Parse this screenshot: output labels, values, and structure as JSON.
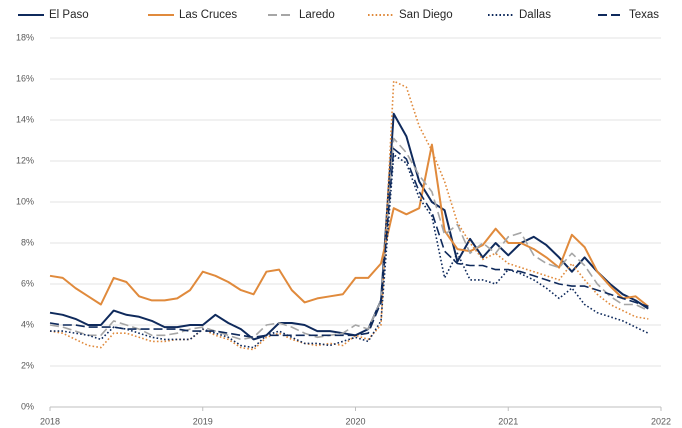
{
  "chart_data": {
    "type": "line",
    "x": [
      2018,
      2018.083,
      2018.167,
      2018.25,
      2018.333,
      2018.417,
      2018.5,
      2018.583,
      2018.667,
      2018.75,
      2018.833,
      2018.917,
      2019,
      2019.083,
      2019.167,
      2019.25,
      2019.333,
      2019.417,
      2019.5,
      2019.583,
      2019.667,
      2019.75,
      2019.833,
      2019.917,
      2020,
      2020.083,
      2020.167,
      2020.25,
      2020.333,
      2020.417,
      2020.5,
      2020.583,
      2020.667,
      2020.75,
      2020.833,
      2020.917,
      2021,
      2021.083,
      2021.167,
      2021.25,
      2021.333,
      2021.417,
      2021.5,
      2021.583,
      2021.667,
      2021.75,
      2021.833,
      2021.917
    ],
    "series": [
      {
        "name": "El Paso",
        "color": "#0f2a5c",
        "style": "solid",
        "values": [
          4.6,
          4.5,
          4.3,
          4.0,
          4.0,
          4.7,
          4.5,
          4.4,
          4.2,
          3.9,
          3.9,
          4.0,
          4.0,
          4.5,
          4.1,
          3.8,
          3.3,
          3.5,
          4.1,
          4.1,
          4.0,
          3.7,
          3.7,
          3.6,
          3.5,
          3.8,
          5.2,
          14.3,
          13.2,
          11.0,
          10.0,
          9.6,
          7.1,
          8.2,
          7.3,
          8.0,
          7.4,
          8.0,
          8.3,
          7.9,
          7.3,
          6.6,
          7.3,
          6.6,
          6.0,
          5.5,
          5.2,
          4.8
        ]
      },
      {
        "name": "Las Cruces",
        "color": "#e08a3c",
        "style": "solid",
        "values": [
          6.4,
          6.3,
          5.8,
          5.4,
          5.0,
          6.3,
          6.1,
          5.4,
          5.2,
          5.2,
          5.3,
          5.7,
          6.6,
          6.4,
          6.1,
          5.7,
          5.5,
          6.6,
          6.7,
          5.7,
          5.1,
          5.3,
          5.4,
          5.5,
          6.3,
          6.3,
          7.0,
          9.7,
          9.4,
          9.7,
          12.8,
          8.6,
          7.7,
          7.6,
          7.9,
          8.7,
          8.0,
          8.0,
          7.7,
          7.3,
          6.8,
          8.4,
          7.8,
          6.6,
          5.9,
          5.3,
          5.4,
          4.9
        ]
      },
      {
        "name": "Laredo",
        "color": "#a6a6a6",
        "style": "dashed",
        "values": [
          4.0,
          3.9,
          3.7,
          3.5,
          3.5,
          4.2,
          4.0,
          3.8,
          3.5,
          3.5,
          3.6,
          3.8,
          3.9,
          3.7,
          3.5,
          3.3,
          3.4,
          4.0,
          4.1,
          3.9,
          3.6,
          3.4,
          3.5,
          3.6,
          4.0,
          3.8,
          5.2,
          13.1,
          12.4,
          11.3,
          10.5,
          8.4,
          8.9,
          7.5,
          8.0,
          7.5,
          8.3,
          8.5,
          7.4,
          7.0,
          6.8,
          7.5,
          6.9,
          6.0,
          5.4,
          5.0,
          5.0,
          4.7
        ]
      },
      {
        "name": "San Diego",
        "color": "#e08a3c",
        "style": "dotted",
        "values": [
          3.7,
          3.6,
          3.3,
          3.0,
          2.9,
          3.6,
          3.6,
          3.4,
          3.2,
          3.2,
          3.3,
          3.3,
          3.8,
          3.5,
          3.3,
          2.9,
          2.8,
          3.4,
          3.6,
          3.3,
          3.1,
          3.0,
          3.1,
          3.0,
          3.5,
          3.3,
          4.0,
          15.9,
          15.6,
          13.7,
          12.5,
          11.0,
          9.0,
          8.0,
          7.2,
          7.5,
          7.0,
          6.8,
          6.6,
          6.4,
          6.2,
          7.0,
          6.2,
          5.5,
          5.0,
          4.7,
          4.4,
          4.3
        ]
      },
      {
        "name": "Dallas",
        "color": "#0f2a5c",
        "style": "dotted",
        "values": [
          3.7,
          3.7,
          3.6,
          3.5,
          3.3,
          3.9,
          3.8,
          3.6,
          3.4,
          3.3,
          3.3,
          3.3,
          3.8,
          3.6,
          3.4,
          3.0,
          2.9,
          3.5,
          3.7,
          3.4,
          3.1,
          3.1,
          3.0,
          3.2,
          3.4,
          3.2,
          4.2,
          12.3,
          11.9,
          10.2,
          9.3,
          6.3,
          7.5,
          6.2,
          6.2,
          6.0,
          6.7,
          6.5,
          6.2,
          5.8,
          5.3,
          5.8,
          5.0,
          4.6,
          4.4,
          4.2,
          3.9,
          3.6
        ]
      },
      {
        "name": "Texas",
        "color": "#0f2a5c",
        "style": "dashed",
        "values": [
          4.1,
          4.0,
          4.0,
          3.9,
          3.9,
          3.9,
          3.8,
          3.8,
          3.8,
          3.8,
          3.8,
          3.7,
          3.7,
          3.7,
          3.6,
          3.5,
          3.4,
          3.5,
          3.5,
          3.5,
          3.5,
          3.5,
          3.5,
          3.5,
          3.5,
          3.6,
          5.1,
          12.6,
          12.1,
          10.5,
          9.5,
          7.6,
          7.0,
          6.9,
          6.9,
          6.7,
          6.7,
          6.6,
          6.4,
          6.2,
          6.0,
          5.9,
          5.9,
          5.7,
          5.5,
          5.3,
          5.1,
          4.9
        ]
      }
    ],
    "xlim": [
      2018,
      2022
    ],
    "xticks": [
      2018,
      2019,
      2020,
      2021,
      2022
    ],
    "ylim": [
      0,
      18
    ],
    "yticks": [
      {
        "value": 0,
        "label": "0%"
      },
      {
        "value": 2,
        "label": "2%"
      },
      {
        "value": 4,
        "label": "4%"
      },
      {
        "value": 6,
        "label": "6%"
      },
      {
        "value": 8,
        "label": "8%"
      },
      {
        "value": 10,
        "label": "10%"
      },
      {
        "value": 12,
        "label": "12%"
      },
      {
        "value": 14,
        "label": "14%"
      },
      {
        "value": 16,
        "label": "16%"
      },
      {
        "value": 18,
        "label": "18%"
      }
    ],
    "grid": true,
    "legend": "top"
  }
}
